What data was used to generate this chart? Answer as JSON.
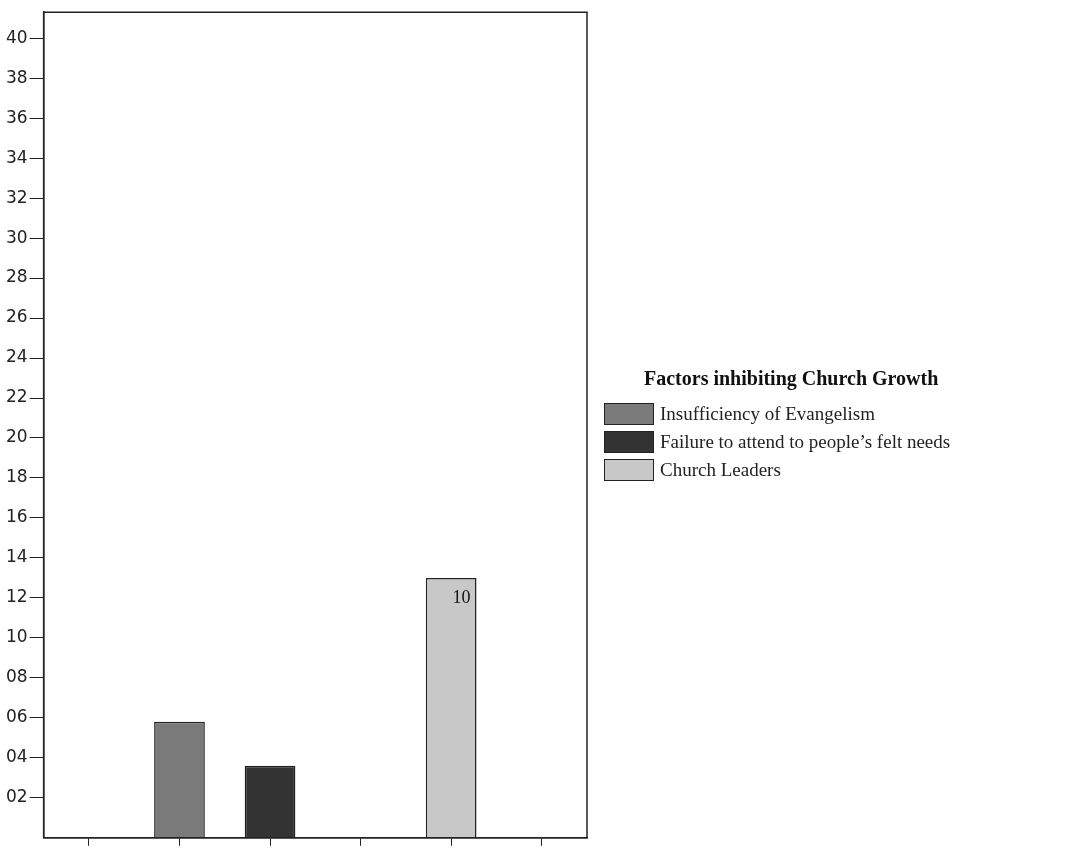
{
  "chart_data": {
    "type": "bar",
    "legend_title": "Factors inhibiting Church Growth",
    "legend": "right",
    "categories": [
      null,
      null,
      null,
      null,
      null,
      null
    ],
    "series": [
      {
        "name": "Insufficiency of Evangelism",
        "color": "#7a7a7a",
        "values": [
          null,
          5.8,
          null,
          null,
          null,
          null
        ]
      },
      {
        "name": "Failure to attend to people’s felt needs",
        "color": "#333333",
        "values": [
          null,
          null,
          3.6,
          null,
          null,
          null
        ]
      },
      {
        "name": "Church Leaders",
        "color": "#c8c8c8",
        "values": [
          null,
          null,
          null,
          null,
          13,
          null
        ]
      }
    ],
    "annotations": [
      "10"
    ],
    "ylim": [
      0,
      41.3
    ],
    "yticks": [
      {
        "value": 2,
        "label": "02"
      },
      {
        "value": 4,
        "label": "04"
      },
      {
        "value": 6,
        "label": "06"
      },
      {
        "value": 8,
        "label": "08"
      },
      10,
      12,
      14,
      16,
      18,
      20,
      22,
      24,
      26,
      28,
      30,
      32,
      34,
      36,
      38,
      40
    ]
  }
}
